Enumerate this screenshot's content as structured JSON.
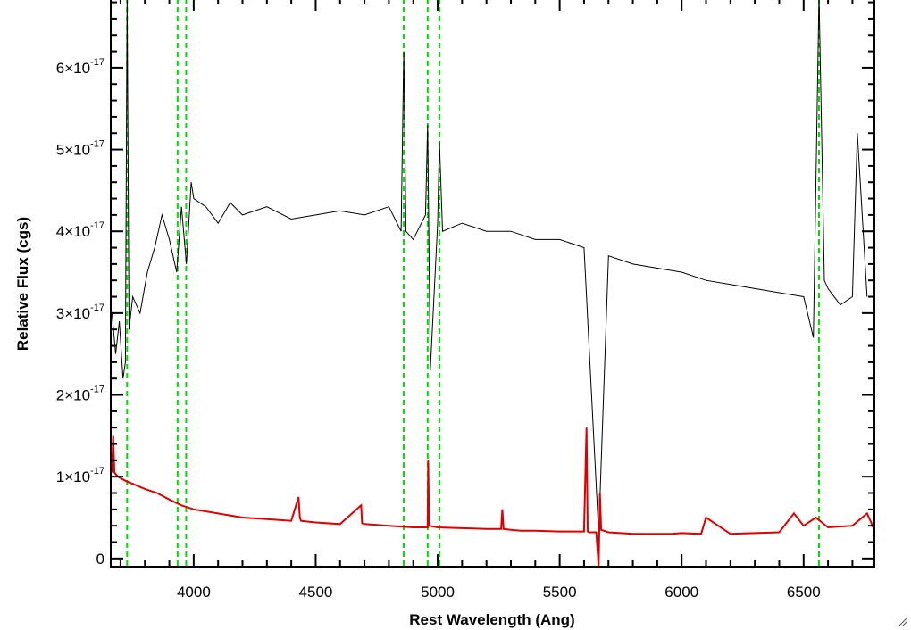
{
  "chart_data": {
    "type": "line",
    "title": "",
    "xlabel": "Rest Wavelength (Ang)",
    "ylabel": "Relative Flux (cgs)",
    "xlim": [
      3660,
      6790
    ],
    "ylim": [
      -1e-18,
      6.85e-17
    ],
    "x_ticks": [
      4000,
      4500,
      5000,
      5500,
      6000,
      6500
    ],
    "x_tick_labels": [
      "4000",
      "4500",
      "5000",
      "5500",
      "6000",
      "6500"
    ],
    "y_ticks": [
      0,
      1e-17,
      2e-17,
      3e-17,
      4e-17,
      5e-17,
      6e-17
    ],
    "y_tick_labels": [
      {
        "mantissa": "0",
        "exponent": ""
      },
      {
        "mantissa": "1×10",
        "exponent": "-17"
      },
      {
        "mantissa": "2×10",
        "exponent": "-17"
      },
      {
        "mantissa": "3×10",
        "exponent": "-17"
      },
      {
        "mantissa": "4×10",
        "exponent": "-17"
      },
      {
        "mantissa": "5×10",
        "exponent": "-17"
      },
      {
        "mantissa": "6×10",
        "exponent": "-17"
      }
    ],
    "grid": false,
    "colors": {
      "spectrum": "#000000",
      "error": "#dd0000",
      "lines": "#00dd00"
    },
    "vertical_markers": [
      3727,
      3934,
      3969,
      4861,
      4959,
      5007,
      6563
    ],
    "series": [
      {
        "id": "spectrum",
        "x": [
          3665,
          3680,
          3695,
          3710,
          3720,
          3727,
          3735,
          3750,
          3780,
          3810,
          3840,
          3870,
          3900,
          3930,
          3950,
          3970,
          3990,
          4000,
          4050,
          4100,
          4150,
          4200,
          4300,
          4400,
          4500,
          4600,
          4700,
          4800,
          4850,
          4861,
          4870,
          4900,
          4950,
          4959,
          4970,
          5000,
          5007,
          5020,
          5100,
          5200,
          5300,
          5400,
          5500,
          5600,
          5660,
          5700,
          5800,
          5900,
          6000,
          6100,
          6200,
          6300,
          6400,
          6500,
          6540,
          6563,
          6585,
          6600,
          6650,
          6700,
          6720,
          6760
        ],
        "y": [
          3e-17,
          2.5e-17,
          2.9e-17,
          2.2e-17,
          2.4e-17,
          6.9e-17,
          2.8e-17,
          3.2e-17,
          3e-17,
          3.5e-17,
          3.8e-17,
          4.2e-17,
          3.9e-17,
          3.5e-17,
          4.3e-17,
          3.6e-17,
          4.6e-17,
          4.4e-17,
          4.3e-17,
          4.1e-17,
          4.35e-17,
          4.2e-17,
          4.3e-17,
          4.15e-17,
          4.2e-17,
          4.25e-17,
          4.2e-17,
          4.3e-17,
          4e-17,
          6.2e-17,
          4e-17,
          3.9e-17,
          4.2e-17,
          5.3e-17,
          2.3e-17,
          4.1e-17,
          5.1e-17,
          4e-17,
          4.1e-17,
          4e-17,
          4e-17,
          3.9e-17,
          3.9e-17,
          3.8e-17,
          3e-18,
          3.7e-17,
          3.6e-17,
          3.55e-17,
          3.5e-17,
          3.4e-17,
          3.35e-17,
          3.3e-17,
          3.25e-17,
          3.2e-17,
          2.7e-17,
          6.9e-17,
          3.4e-17,
          3.3e-17,
          3.1e-17,
          3.2e-17,
          5.2e-17,
          3.2e-17
        ]
      },
      {
        "id": "error",
        "x": [
          3665,
          3670,
          3675,
          3690,
          3720,
          3760,
          3800,
          3850,
          3900,
          3950,
          4000,
          4100,
          4200,
          4300,
          4400,
          4430,
          4435,
          4440,
          4500,
          4600,
          4686,
          4690,
          4700,
          4800,
          4900,
          4959,
          4961,
          4965,
          5000,
          5100,
          5200,
          5260,
          5265,
          5270,
          5300,
          5340,
          5400,
          5500,
          5600,
          5610,
          5615,
          5620,
          5650,
          5660,
          5665,
          5670,
          5700,
          5800,
          5900,
          5960,
          6000,
          6080,
          6100,
          6200,
          6300,
          6400,
          6460,
          6500,
          6550,
          6600,
          6700,
          6760,
          6790
        ],
        "y": [
          1.05e-17,
          1.5e-17,
          1.05e-17,
          1e-17,
          9.5e-18,
          9e-18,
          8.5e-18,
          8e-18,
          7.2e-18,
          6.5e-18,
          6e-18,
          5.5e-18,
          5e-18,
          4.8e-18,
          4.6e-18,
          7.5e-18,
          5e-18,
          4.6e-18,
          4.4e-18,
          4.2e-18,
          6.5e-18,
          4.3e-18,
          4.2e-18,
          4e-18,
          3.8e-18,
          3.8e-18,
          1.2e-17,
          4e-18,
          3.8e-18,
          3.7e-18,
          3.6e-18,
          3.6e-18,
          6e-18,
          3.6e-18,
          3.5e-18,
          3.4e-18,
          3.4e-18,
          3.3e-18,
          3.3e-18,
          1.6e-17,
          3.3e-18,
          3.2e-18,
          3.2e-18,
          -1e-18,
          8e-18,
          3.5e-18,
          3.2e-18,
          3e-18,
          3e-18,
          3e-18,
          3.1e-18,
          3e-18,
          5e-18,
          3e-18,
          3.1e-18,
          3.2e-18,
          5.5e-18,
          4e-18,
          5e-18,
          3.8e-18,
          4e-18,
          5.5e-18,
          3.5e-18
        ]
      }
    ]
  }
}
